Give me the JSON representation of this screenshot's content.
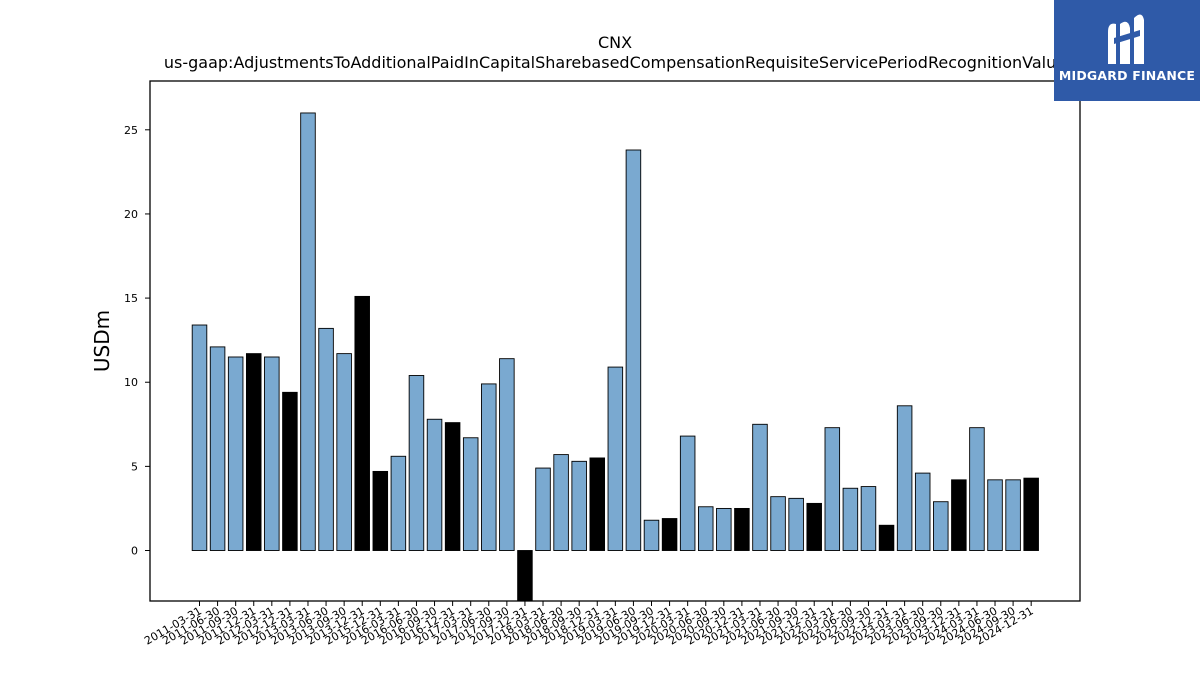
{
  "chart_data": {
    "type": "bar",
    "title": "CNX",
    "subtitle": "us-gaap:AdjustmentsToAdditionalPaidInCapitalSharebasedCompensationRequisiteServicePeriodRecognitionValue",
    "xlabel": "",
    "ylabel": "USDm",
    "ylim": [
      -3.0,
      27.9
    ],
    "yticks": [
      0,
      5,
      10,
      15,
      20,
      25
    ],
    "grid": false,
    "legend": "none",
    "colors": {
      "quarter": "#7aa9d0",
      "year_end": "#000000",
      "edge": "#000000"
    },
    "categories": [
      "2011-03-31",
      "2011-06-30",
      "2011-09-30",
      "2011-12-31",
      "2012-03-31",
      "2012-12-31",
      "2013-03-31",
      "2013-06-30",
      "2013-09-30",
      "2013-12-31",
      "2015-12-31",
      "2016-03-31",
      "2016-06-30",
      "2016-09-30",
      "2016-12-31",
      "2017-03-31",
      "2017-06-30",
      "2017-09-30",
      "2017-12-31",
      "2018-03-31",
      "2018-06-30",
      "2018-09-30",
      "2018-12-31",
      "2019-03-31",
      "2019-06-30",
      "2019-09-30",
      "2019-12-31",
      "2020-03-31",
      "2020-06-30",
      "2020-09-30",
      "2020-12-31",
      "2021-03-31",
      "2021-06-30",
      "2021-09-30",
      "2021-12-31",
      "2022-03-31",
      "2022-06-30",
      "2022-09-30",
      "2022-12-31",
      "2023-03-31",
      "2023-06-30",
      "2023-09-30",
      "2023-12-31",
      "2024-03-31",
      "2024-06-30",
      "2024-09-30",
      "2024-12-31"
    ],
    "values": [
      13.4,
      12.1,
      11.5,
      11.7,
      11.5,
      9.4,
      26.0,
      13.2,
      11.7,
      15.1,
      4.7,
      5.6,
      10.4,
      7.8,
      7.6,
      6.7,
      9.9,
      11.4,
      -3.0,
      4.9,
      5.7,
      5.3,
      5.5,
      10.9,
      23.8,
      1.8,
      1.9,
      6.8,
      2.6,
      2.5,
      2.5,
      7.5,
      3.2,
      3.1,
      2.8,
      7.3,
      3.7,
      3.8,
      1.5,
      8.6,
      4.6,
      2.9,
      4.2,
      7.3,
      4.2,
      4.2,
      4.3
    ],
    "year_end_flags": [
      false,
      false,
      false,
      true,
      false,
      true,
      false,
      false,
      false,
      true,
      true,
      false,
      false,
      false,
      true,
      false,
      false,
      false,
      true,
      false,
      false,
      false,
      true,
      false,
      false,
      false,
      true,
      false,
      false,
      false,
      true,
      false,
      false,
      false,
      true,
      false,
      false,
      false,
      true,
      false,
      false,
      false,
      true,
      false,
      false,
      false,
      true
    ]
  },
  "logo": {
    "text": "MIDGARD FINANCE",
    "icon": "midgard-logo-icon",
    "background": "#2f5aa8"
  }
}
